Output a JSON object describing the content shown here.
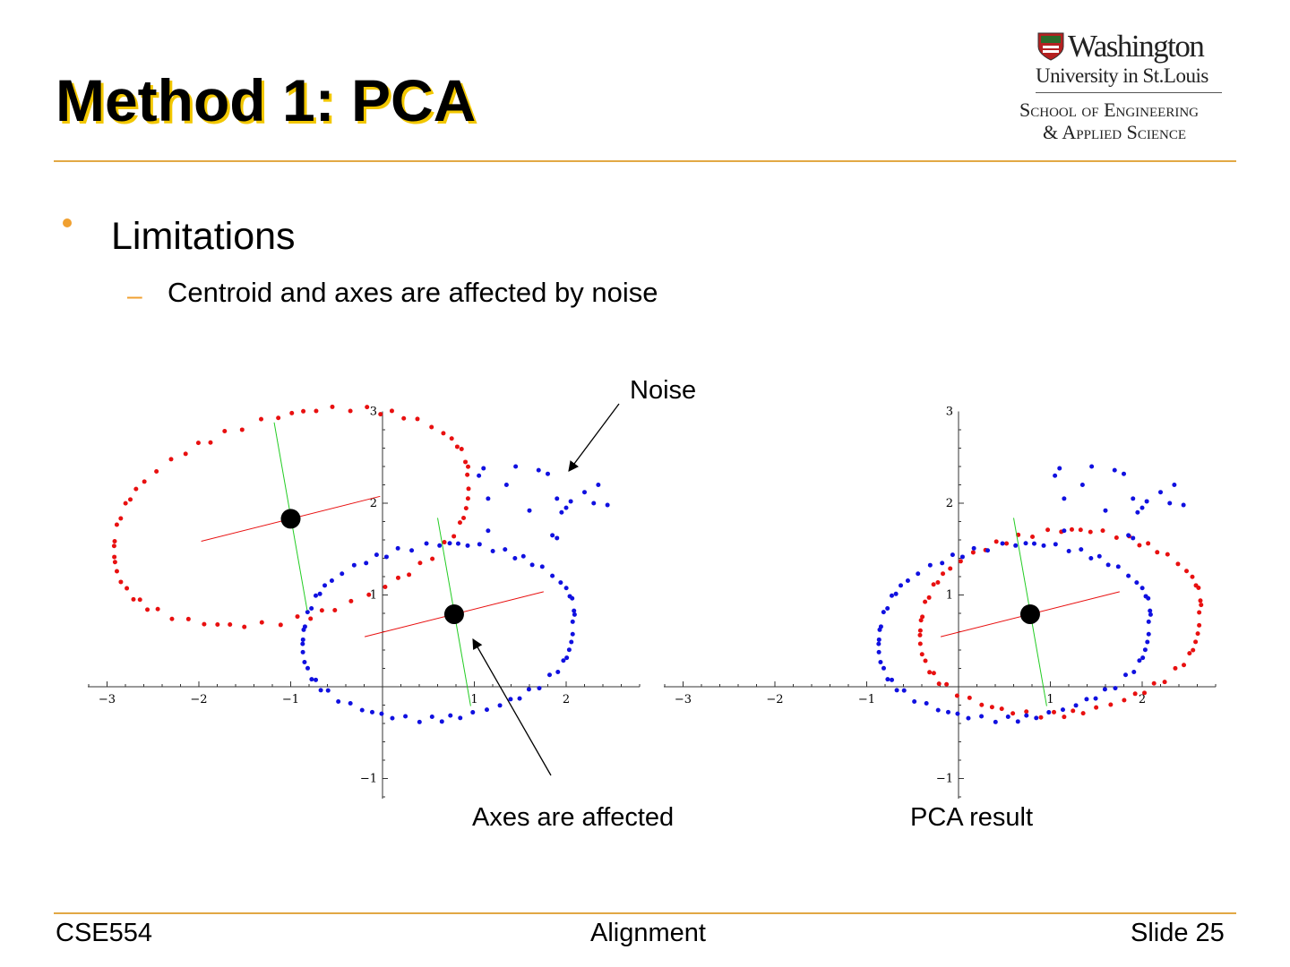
{
  "slide": {
    "title": "Method 1: PCA",
    "bullet": "Limitations",
    "sub_bullet": "Centroid and axes are affected by noise"
  },
  "logo": {
    "line1": "Washington",
    "line2": "University in St.Louis",
    "line3": "School of Engineering",
    "line4": "& Applied Science"
  },
  "annotations": {
    "noise": "Noise",
    "axes": "Axes are affected",
    "result": "PCA result"
  },
  "footer": {
    "left": "CSE554",
    "center": "Alignment",
    "right": "Slide 25"
  },
  "colors": {
    "accent": "#e2a844",
    "bullet": "#f0a030",
    "red_points": "#e81010",
    "blue_points": "#1010e0",
    "axis_green": "#22cc22",
    "axis_red": "#e81010"
  },
  "chart_data": [
    {
      "type": "scatter",
      "title": "",
      "xlim": [
        -3.2,
        2.85
      ],
      "ylim": [
        -1.2,
        3.0
      ],
      "x_ticks": [
        -3,
        -2,
        -1,
        1,
        2
      ],
      "y_ticks": [
        -1,
        1,
        2,
        3
      ],
      "series": [
        {
          "shape": "ellipse",
          "center": [
            -1.0,
            1.85
          ],
          "semi_axes": [
            2.0,
            1.1
          ],
          "rotation_deg": 15
        },
        {
          "shape": "ellipse",
          "center": [
            0.6,
            0.6
          ],
          "semi_axes": [
            1.5,
            0.95
          ],
          "rotation_deg": 6
        },
        {
          "shape": "cluster",
          "points": [
            [
              1.05,
              2.3
            ],
            [
              1.1,
              2.38
            ],
            [
              1.45,
              2.4
            ],
            [
              1.7,
              2.36
            ],
            [
              1.8,
              2.32
            ],
            [
              1.35,
              2.2
            ],
            [
              2.35,
              2.2
            ],
            [
              2.2,
              2.12
            ],
            [
              1.15,
              2.05
            ],
            [
              1.9,
              2.05
            ],
            [
              2.05,
              2.02
            ],
            [
              2.3,
              2.0
            ],
            [
              1.6,
              1.92
            ],
            [
              2.45,
              1.98
            ],
            [
              2.0,
              1.95
            ],
            [
              1.95,
              1.9
            ],
            [
              1.85,
              1.65
            ],
            [
              1.9,
              1.62
            ],
            [
              1.15,
              1.7
            ]
          ]
        }
      ],
      "centroids": [
        [
          -1.0,
          1.83
        ],
        [
          0.78,
          0.79
        ]
      ]
    },
    {
      "type": "scatter",
      "title": "",
      "xlim": [
        -3.2,
        2.85
      ],
      "ylim": [
        -1.2,
        3.0
      ],
      "x_ticks": [
        -3,
        -2,
        -1,
        1,
        2
      ],
      "y_ticks": [
        -1,
        1,
        2,
        3
      ],
      "series": [
        {
          "shape": "ellipse",
          "center": [
            1.1,
            0.7
          ],
          "semi_axes": [
            1.55,
            1.0
          ],
          "rotation_deg": 6
        },
        {
          "shape": "ellipse",
          "center": [
            0.6,
            0.6
          ],
          "semi_axes": [
            1.5,
            0.95
          ],
          "rotation_deg": 6
        },
        {
          "shape": "cluster",
          "points": [
            [
              1.05,
              2.3
            ],
            [
              1.1,
              2.38
            ],
            [
              1.45,
              2.4
            ],
            [
              1.7,
              2.36
            ],
            [
              1.8,
              2.32
            ],
            [
              1.35,
              2.2
            ],
            [
              2.35,
              2.2
            ],
            [
              2.2,
              2.12
            ],
            [
              1.15,
              2.05
            ],
            [
              1.9,
              2.05
            ],
            [
              2.05,
              2.02
            ],
            [
              2.3,
              2.0
            ],
            [
              1.6,
              1.92
            ],
            [
              2.45,
              1.98
            ],
            [
              2.0,
              1.95
            ],
            [
              1.95,
              1.9
            ],
            [
              1.85,
              1.65
            ],
            [
              1.9,
              1.62
            ],
            [
              1.15,
              1.7
            ]
          ]
        }
      ],
      "centroids": [
        [
          0.78,
          0.79
        ]
      ]
    }
  ]
}
